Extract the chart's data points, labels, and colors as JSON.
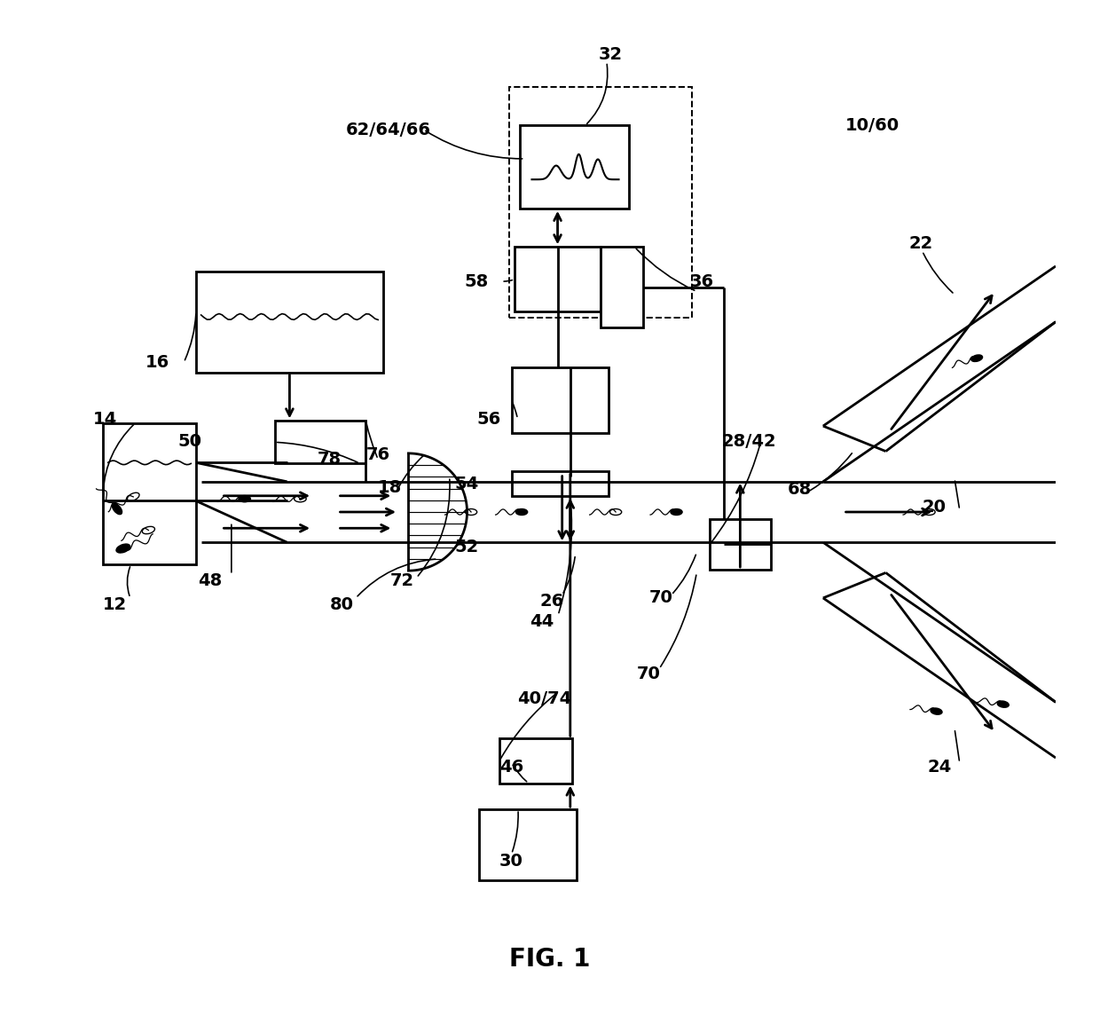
{
  "bg": "#ffffff",
  "lw": 2.0,
  "fig_label": "FIG. 1",
  "label_fs": 14,
  "title_fs": 20
}
